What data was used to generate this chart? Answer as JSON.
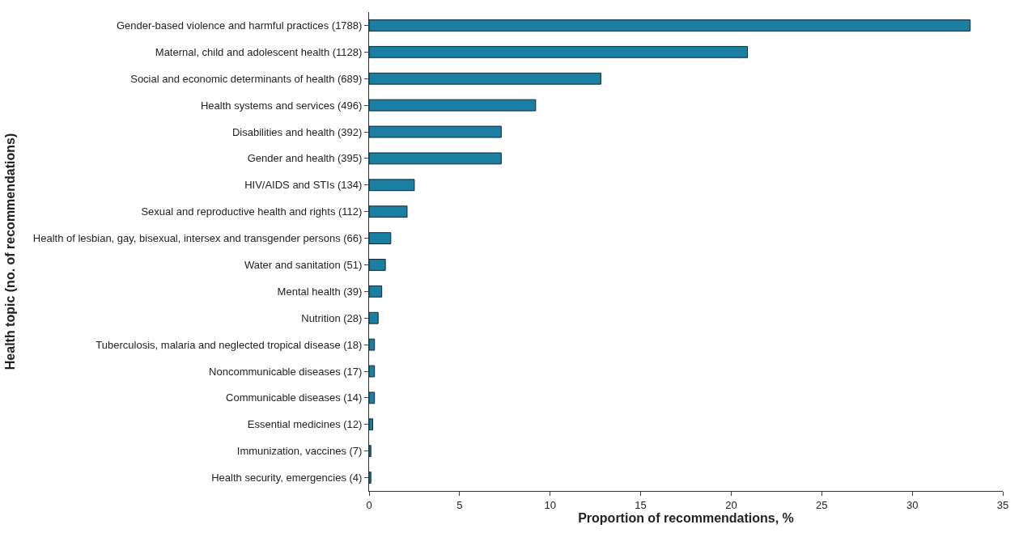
{
  "chart_data": {
    "type": "bar",
    "orientation": "horizontal",
    "xlabel": "Proportion of recommendations, %",
    "ylabel": "Health topic (no. of recommendations)",
    "categories": [
      "Gender-based violence and harmful practices (1788)",
      "Maternal, child and adolescent health (1128)",
      "Social and economic determinants of health (689)",
      "Health systems and services (496)",
      "Disabilities and health (392)",
      "Gender and health (395)",
      "HIV/AIDS and STIs (134)",
      "Sexual and reproductive health and rights (112)",
      "Health of lesbian, gay, bisexual, intersex and transgender persons (66)",
      "Water and sanitation (51)",
      "Mental health (39)",
      "Nutrition (28)",
      "Tuberculosis, malaria and neglected tropical disease (18)",
      "Noncommunicable diseases (17)",
      "Communicable diseases (14)",
      "Essential medicines (12)",
      "Immunization, vaccines (7)",
      "Health security, emergencies (4)"
    ],
    "values": [
      33.2,
      20.9,
      12.8,
      9.2,
      7.3,
      7.3,
      2.5,
      2.1,
      1.2,
      0.9,
      0.7,
      0.5,
      0.3,
      0.3,
      0.3,
      0.2,
      0.1,
      0.1
    ],
    "color": "#1a7fa0",
    "xlim": [
      0,
      35
    ],
    "xticks": [
      0,
      5,
      10,
      15,
      20,
      25,
      30,
      35
    ]
  }
}
